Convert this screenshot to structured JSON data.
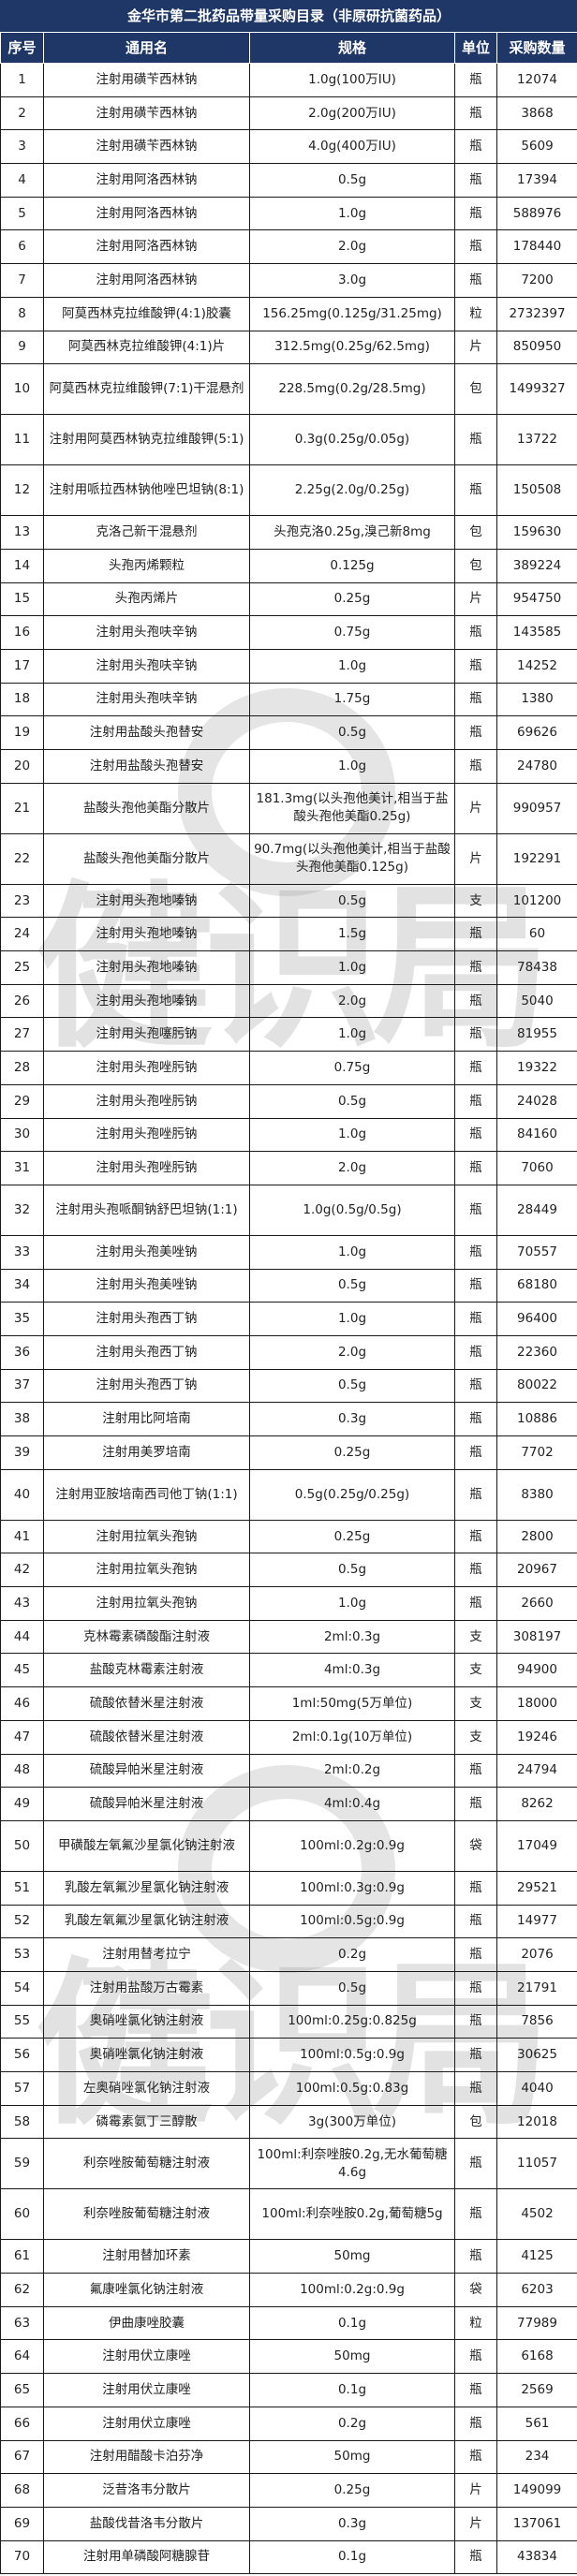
{
  "title": "金华市第二批药品带量采购目录（非原研抗菌药品）",
  "watermark": "健识局",
  "columns": [
    "序号",
    "通用名",
    "规格",
    "单位",
    "采购数量"
  ],
  "colors": {
    "header_bg": "#1f3766",
    "header_text": "#ffffff"
  },
  "rows": [
    [
      "1",
      "注射用磺苄西林钠",
      "1.0g(100万IU)",
      "瓶",
      "12074"
    ],
    [
      "2",
      "注射用磺苄西林钠",
      "2.0g(200万IU)",
      "瓶",
      "3868"
    ],
    [
      "3",
      "注射用磺苄西林钠",
      "4.0g(400万IU)",
      "瓶",
      "5609"
    ],
    [
      "4",
      "注射用阿洛西林钠",
      "0.5g",
      "瓶",
      "17394"
    ],
    [
      "5",
      "注射用阿洛西林钠",
      "1.0g",
      "瓶",
      "588976"
    ],
    [
      "6",
      "注射用阿洛西林钠",
      "2.0g",
      "瓶",
      "178440"
    ],
    [
      "7",
      "注射用阿洛西林钠",
      "3.0g",
      "瓶",
      "7200"
    ],
    [
      "8",
      "阿莫西林克拉维酸钾(4:1)胶囊",
      "156.25mg(0.125g/31.25mg)",
      "粒",
      "2732397"
    ],
    [
      "9",
      "阿莫西林克拉维酸钾(4:1)片",
      "312.5mg(0.25g/62.5mg)",
      "片",
      "850950"
    ],
    [
      "10",
      "阿莫西林克拉维酸钾(7:1)干混悬剂",
      "228.5mg(0.2g/28.5mg)",
      "包",
      "1499327"
    ],
    [
      "11",
      "注射用阿莫西林钠克拉维酸钾(5:1)",
      "0.3g(0.25g/0.05g)",
      "瓶",
      "13722"
    ],
    [
      "12",
      "注射用哌拉西林钠他唑巴坦钠(8:1)",
      "2.25g(2.0g/0.25g)",
      "瓶",
      "150508"
    ],
    [
      "13",
      "克洛己新干混悬剂",
      "头孢克洛0.25g,溴己新8mg",
      "包",
      "159630"
    ],
    [
      "14",
      "头孢丙烯颗粒",
      "0.125g",
      "包",
      "389224"
    ],
    [
      "15",
      "头孢丙烯片",
      "0.25g",
      "片",
      "954750"
    ],
    [
      "16",
      "注射用头孢呋辛钠",
      "0.75g",
      "瓶",
      "143585"
    ],
    [
      "17",
      "注射用头孢呋辛钠",
      "1.0g",
      "瓶",
      "14252"
    ],
    [
      "18",
      "注射用头孢呋辛钠",
      "1.75g",
      "瓶",
      "1380"
    ],
    [
      "19",
      "注射用盐酸头孢替安",
      "0.5g",
      "瓶",
      "69626"
    ],
    [
      "20",
      "注射用盐酸头孢替安",
      "1.0g",
      "瓶",
      "24780"
    ],
    [
      "21",
      "盐酸头孢他美酯分散片",
      "181.3mg(以头孢他美计,相当于盐酸头孢他美酯0.25g)",
      "片",
      "990957"
    ],
    [
      "22",
      "盐酸头孢他美酯分散片",
      "90.7mg(以头孢他美计,相当于盐酸头孢他美酯0.125g)",
      "片",
      "192291"
    ],
    [
      "23",
      "注射用头孢地嗪钠",
      "0.5g",
      "支",
      "101200"
    ],
    [
      "24",
      "注射用头孢地嗪钠",
      "1.5g",
      "瓶",
      "60"
    ],
    [
      "25",
      "注射用头孢地嗪钠",
      "1.0g",
      "瓶",
      "78438"
    ],
    [
      "26",
      "注射用头孢地嗪钠",
      "2.0g",
      "瓶",
      "5040"
    ],
    [
      "27",
      "注射用头孢噻肟钠",
      "1.0g",
      "瓶",
      "81955"
    ],
    [
      "28",
      "注射用头孢唑肟钠",
      "0.75g",
      "瓶",
      "19322"
    ],
    [
      "29",
      "注射用头孢唑肟钠",
      "0.5g",
      "瓶",
      "24028"
    ],
    [
      "30",
      "注射用头孢唑肟钠",
      "1.0g",
      "瓶",
      "84160"
    ],
    [
      "31",
      "注射用头孢唑肟钠",
      "2.0g",
      "瓶",
      "7060"
    ],
    [
      "32",
      "注射用头孢哌酮钠舒巴坦钠(1:1)",
      "1.0g(0.5g/0.5g)",
      "瓶",
      "28449"
    ],
    [
      "33",
      "注射用头孢美唑钠",
      "1.0g",
      "瓶",
      "70557"
    ],
    [
      "34",
      "注射用头孢美唑钠",
      "0.5g",
      "瓶",
      "68180"
    ],
    [
      "35",
      "注射用头孢西丁钠",
      "1.0g",
      "瓶",
      "96400"
    ],
    [
      "36",
      "注射用头孢西丁钠",
      "2.0g",
      "瓶",
      "22360"
    ],
    [
      "37",
      "注射用头孢西丁钠",
      "0.5g",
      "瓶",
      "80022"
    ],
    [
      "38",
      "注射用比阿培南",
      "0.3g",
      "瓶",
      "10886"
    ],
    [
      "39",
      "注射用美罗培南",
      "0.25g",
      "瓶",
      "7702"
    ],
    [
      "40",
      "注射用亚胺培南西司他丁钠(1:1)",
      "0.5g(0.25g/0.25g)",
      "瓶",
      "8380"
    ],
    [
      "41",
      "注射用拉氧头孢钠",
      "0.25g",
      "瓶",
      "2800"
    ],
    [
      "42",
      "注射用拉氧头孢钠",
      "0.5g",
      "瓶",
      "20967"
    ],
    [
      "43",
      "注射用拉氧头孢钠",
      "1.0g",
      "瓶",
      "2660"
    ],
    [
      "44",
      "克林霉素磷酸酯注射液",
      "2ml:0.3g",
      "支",
      "308197"
    ],
    [
      "45",
      "盐酸克林霉素注射液",
      "4ml:0.3g",
      "支",
      "94900"
    ],
    [
      "46",
      "硫酸依替米星注射液",
      "1ml:50mg(5万单位)",
      "支",
      "18000"
    ],
    [
      "47",
      "硫酸依替米星注射液",
      "2ml:0.1g(10万单位)",
      "支",
      "19246"
    ],
    [
      "48",
      "硫酸异帕米星注射液",
      "2ml:0.2g",
      "瓶",
      "24794"
    ],
    [
      "49",
      "硫酸异帕米星注射液",
      "4ml:0.4g",
      "瓶",
      "8262"
    ],
    [
      "50",
      "甲磺酸左氧氟沙星氯化钠注射液",
      "100ml:0.2g:0.9g",
      "袋",
      "17049"
    ],
    [
      "51",
      "乳酸左氧氟沙星氯化钠注射液",
      "100ml:0.3g:0.9g",
      "瓶",
      "29521"
    ],
    [
      "52",
      "乳酸左氧氟沙星氯化钠注射液",
      "100ml:0.5g:0.9g",
      "瓶",
      "14977"
    ],
    [
      "53",
      "注射用替考拉宁",
      "0.2g",
      "瓶",
      "2076"
    ],
    [
      "54",
      "注射用盐酸万古霉素",
      "0.5g",
      "瓶",
      "21791"
    ],
    [
      "55",
      "奥硝唑氯化钠注射液",
      "100ml:0.25g:0.825g",
      "瓶",
      "7856"
    ],
    [
      "56",
      "奥硝唑氯化钠注射液",
      "100ml:0.5g:0.9g",
      "瓶",
      "30625"
    ],
    [
      "57",
      "左奥硝唑氯化钠注射液",
      "100ml:0.5g:0.83g",
      "瓶",
      "4040"
    ],
    [
      "58",
      "磷霉素氨丁三醇散",
      "3g(300万单位)",
      "包",
      "12018"
    ],
    [
      "59",
      "利奈唑胺葡萄糖注射液",
      "100ml:利奈唑胺0.2g,无水葡萄糖4.6g",
      "瓶",
      "11057"
    ],
    [
      "60",
      "利奈唑胺葡萄糖注射液",
      "100ml:利奈唑胺0.2g,葡萄糖5g",
      "瓶",
      "4502"
    ],
    [
      "61",
      "注射用替加环素",
      "50mg",
      "瓶",
      "4125"
    ],
    [
      "62",
      "氟康唑氯化钠注射液",
      "100ml:0.2g:0.9g",
      "袋",
      "6203"
    ],
    [
      "63",
      "伊曲康唑胶囊",
      "0.1g",
      "粒",
      "77989"
    ],
    [
      "64",
      "注射用伏立康唑",
      "50mg",
      "瓶",
      "6168"
    ],
    [
      "65",
      "注射用伏立康唑",
      "0.1g",
      "瓶",
      "2569"
    ],
    [
      "66",
      "注射用伏立康唑",
      "0.2g",
      "瓶",
      "561"
    ],
    [
      "67",
      "注射用醋酸卡泊芬净",
      "50mg",
      "瓶",
      "234"
    ],
    [
      "68",
      "泛昔洛韦分散片",
      "0.25g",
      "片",
      "149099"
    ],
    [
      "69",
      "盐酸伐昔洛韦分散片",
      "0.3g",
      "片",
      "137061"
    ],
    [
      "70",
      "注射用单磷酸阿糖腺苷",
      "0.1g",
      "瓶",
      "43834"
    ]
  ]
}
